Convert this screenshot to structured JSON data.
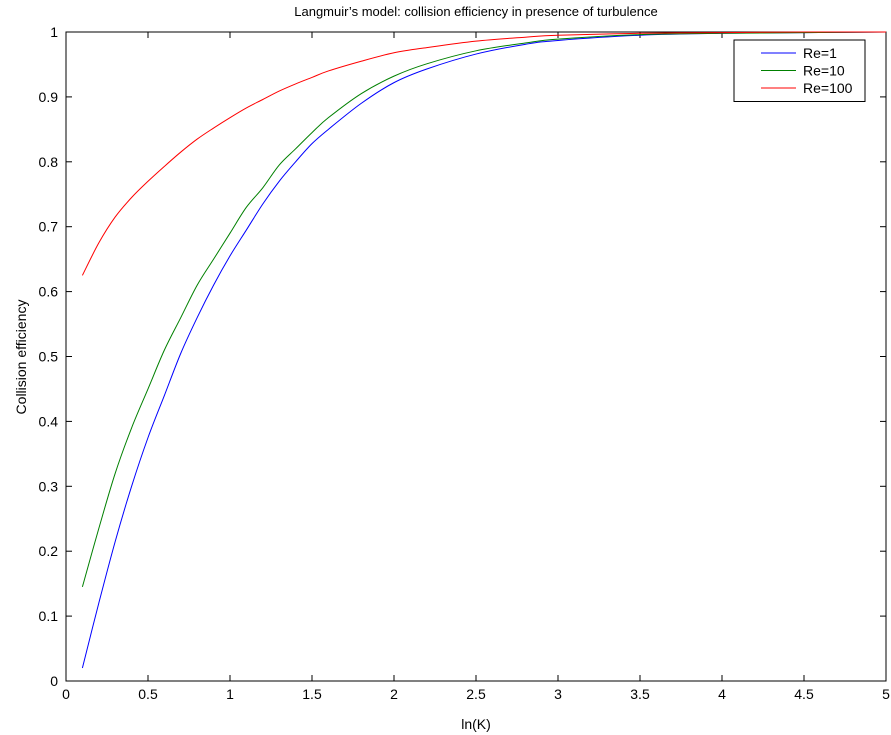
{
  "chart_data": {
    "type": "line",
    "title": "Langmuir’s model: collision efficiency in presence of turbulence",
    "xlabel": "ln(K)",
    "ylabel": "Collision efficiency",
    "xlim": [
      0,
      5
    ],
    "ylim": [
      0,
      1
    ],
    "xticks": [
      0,
      0.5,
      1,
      1.5,
      2,
      2.5,
      3,
      3.5,
      4,
      4.5,
      5
    ],
    "xtick_labels": [
      "0",
      "0.5",
      "1",
      "1.5",
      "2",
      "2.5",
      "3",
      "3.5",
      "4",
      "4.5",
      "5"
    ],
    "yticks": [
      0,
      0.1,
      0.2,
      0.3,
      0.4,
      0.5,
      0.6,
      0.7,
      0.8,
      0.9,
      1
    ],
    "ytick_labels": [
      "0",
      "0.1",
      "0.2",
      "0.3",
      "0.4",
      "0.5",
      "0.6",
      "0.7",
      "0.8",
      "0.9",
      "1"
    ],
    "grid": false,
    "legend": {
      "position": "top-right"
    },
    "x": [
      0.1,
      0.2,
      0.3,
      0.4,
      0.5,
      0.6,
      0.7,
      0.8,
      0.9,
      1.0,
      1.1,
      1.2,
      1.3,
      1.4,
      1.5,
      1.6,
      1.8,
      2.0,
      2.2,
      2.5,
      2.8,
      3.0,
      3.5,
      4.0,
      4.5,
      5.0
    ],
    "series": [
      {
        "name": "Re=1",
        "color": "#0000ff",
        "values": [
          0.02,
          0.12,
          0.215,
          0.3,
          0.375,
          0.44,
          0.505,
          0.56,
          0.61,
          0.655,
          0.695,
          0.735,
          0.77,
          0.8,
          0.828,
          0.85,
          0.89,
          0.922,
          0.943,
          0.966,
          0.981,
          0.987,
          0.995,
          0.998,
          0.999,
          1.0
        ]
      },
      {
        "name": "Re=10",
        "color": "#008000",
        "values": [
          0.145,
          0.235,
          0.32,
          0.39,
          0.45,
          0.51,
          0.56,
          0.61,
          0.65,
          0.69,
          0.73,
          0.76,
          0.795,
          0.82,
          0.845,
          0.868,
          0.905,
          0.932,
          0.951,
          0.971,
          0.983,
          0.989,
          0.996,
          0.998,
          0.999,
          1.0
        ]
      },
      {
        "name": "Re=100",
        "color": "#ff0000",
        "values": [
          0.625,
          0.675,
          0.715,
          0.745,
          0.77,
          0.793,
          0.815,
          0.835,
          0.852,
          0.868,
          0.883,
          0.896,
          0.909,
          0.92,
          0.93,
          0.94,
          0.955,
          0.968,
          0.976,
          0.986,
          0.992,
          0.995,
          0.998,
          0.999,
          1.0,
          1.0
        ]
      }
    ]
  }
}
